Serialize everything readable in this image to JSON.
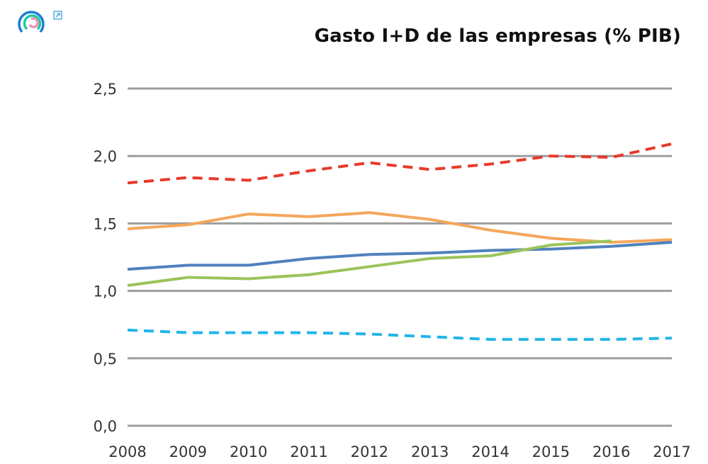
{
  "chart_data": {
    "type": "line",
    "title": "Gasto I+D de las empresas (% PIB)",
    "xlabel": "",
    "ylabel": "",
    "categories": [
      "2008",
      "2009",
      "2010",
      "2011",
      "2012",
      "2013",
      "2014",
      "2015",
      "2016",
      "2017"
    ],
    "ylim": [
      0,
      2.5
    ],
    "yticks": [
      "0,0",
      "0,5",
      "1,0",
      "1,5",
      "2,0",
      "2,5"
    ],
    "grid": true,
    "legend": "none",
    "series": [
      {
        "color": "#e8392a",
        "dash": true,
        "values": [
          1.8,
          1.84,
          1.82,
          1.89,
          1.95,
          1.9,
          1.94,
          2.0,
          1.99,
          2.09
        ]
      },
      {
        "color": "#f5a65b",
        "dash": false,
        "values": [
          1.46,
          1.49,
          1.57,
          1.55,
          1.58,
          1.53,
          1.45,
          1.39,
          1.36,
          1.38
        ]
      },
      {
        "color": "#4f81bd",
        "dash": false,
        "values": [
          1.16,
          1.19,
          1.19,
          1.24,
          1.27,
          1.28,
          1.3,
          1.31,
          1.33,
          1.36
        ]
      },
      {
        "color": "#9bc45a",
        "dash": false,
        "values": [
          1.04,
          1.1,
          1.09,
          1.12,
          1.18,
          1.24,
          1.26,
          1.34,
          1.37,
          null
        ]
      },
      {
        "color": "#22b5e8",
        "dash": true,
        "values": [
          0.71,
          0.69,
          0.69,
          0.69,
          0.68,
          0.66,
          0.64,
          0.64,
          0.64,
          0.65
        ]
      }
    ]
  },
  "logo": {
    "icon": "ring-logo-icon",
    "link_icon": "external-link-icon"
  }
}
